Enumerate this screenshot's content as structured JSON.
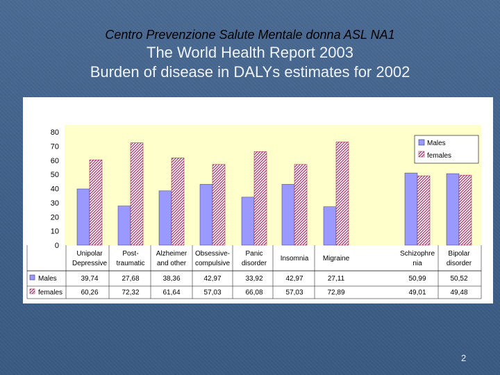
{
  "header": {
    "subtitle": "Centro Prevenzione Salute Mentale donna ASL NA1",
    "title_line1": "The World Health Report 2003",
    "title_line2": "Burden of disease in DALYs estimates for 2002"
  },
  "slide_number": "2",
  "colors": {
    "males": "#9999ff",
    "females_hatch": "#993366",
    "plot_bg": "#ffffcc"
  },
  "chart_data": {
    "type": "bar",
    "categories": [
      [
        "Unipolar",
        "Depressive"
      ],
      [
        "Post-",
        "traumatic"
      ],
      [
        "Alzheimer",
        "and other"
      ],
      [
        "Obsessive-",
        "compulsive"
      ],
      [
        "Panic",
        "disorder"
      ],
      [
        "Insomnia"
      ],
      [
        "Migraine"
      ],
      [
        "Schizophre",
        "nia"
      ],
      [
        "Bipolar",
        "disorder"
      ]
    ],
    "series": [
      {
        "name": "Males",
        "values": [
          39.74,
          27.68,
          38.36,
          42.97,
          33.92,
          42.97,
          27.11,
          50.99,
          50.52
        ],
        "labels": [
          "39,74",
          "27,68",
          "38,36",
          "42,97",
          "33,92",
          "42,97",
          "27,11",
          "50,99",
          "50,52"
        ]
      },
      {
        "name": "females",
        "values": [
          60.26,
          72.32,
          61.64,
          57.03,
          66.08,
          57.03,
          72.89,
          49.01,
          49.48
        ],
        "labels": [
          "60,26",
          "72,32",
          "61,64",
          "57,03",
          "66,08",
          "57,03",
          "72,89",
          "49,01",
          "49,48"
        ]
      }
    ],
    "ylim": [
      0,
      80
    ],
    "yticks": [
      0,
      10,
      20,
      30,
      40,
      50,
      60,
      70,
      80
    ],
    "legend_position": "top-right",
    "grid": false
  }
}
